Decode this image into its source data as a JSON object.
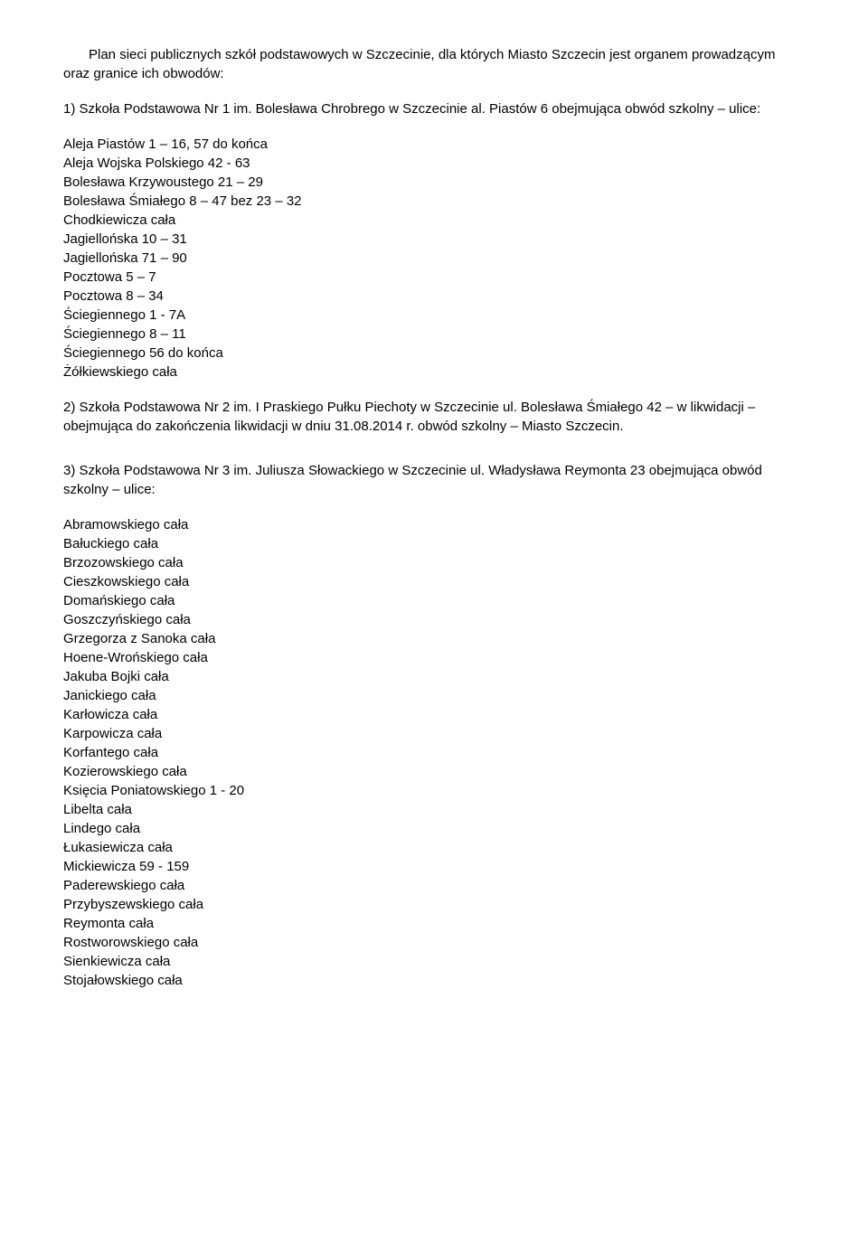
{
  "intro": "Plan sieci publicznych szkół podstawowych w Szczecinie, dla których Miasto Szczecin jest organem prowadzącym oraz granice ich obwodów:",
  "section1": {
    "heading": "1) Szkoła Podstawowa Nr 1 im. Bolesława Chrobrego w Szczecinie al. Piastów 6 obejmująca obwód szkolny – ulice:",
    "streets": [
      "Aleja Piastów 1 – 16, 57 do końca",
      "Aleja Wojska Polskiego  42 - 63",
      "Bolesława Krzywoustego 21 – 29",
      "Bolesława Śmiałego 8 – 47 bez 23 – 32",
      "Chodkiewicza cała",
      "Jagiellońska  10 – 31",
      "Jagiellońska  71 – 90",
      "Pocztowa  5 – 7",
      "Pocztowa  8 – 34",
      "Ściegiennego  1 - 7A",
      "Ściegiennego  8 – 11",
      "Ściegiennego  56 do końca",
      "Żółkiewskiego cała"
    ]
  },
  "section2": {
    "text": "2) Szkoła Podstawowa Nr 2 im. I Praskiego Pułku Piechoty w Szczecinie ul. Bolesława Śmiałego 42 – w likwidacji – obejmująca do zakończenia likwidacji w dniu 31.08.2014 r. obwód szkolny – Miasto Szczecin."
  },
  "section3": {
    "heading": "3) Szkoła Podstawowa Nr 3 im. Juliusza Słowackiego w Szczecinie  ul. Władysława Reymonta 23 obejmująca obwód szkolny – ulice:",
    "streets": [
      "Abramowskiego cała",
      "Bałuckiego  cała",
      "Brzozowskiego  cała",
      "Cieszkowskiego  cała",
      "Domańskiego  cała",
      "Goszczyńskiego  cała",
      "Grzegorza z Sanoka  cała",
      "Hoene-Wrońskiego  cała",
      "Jakuba Bojki  cała",
      "Janickiego  cała",
      "Karłowicza  cała",
      "Karpowicza  cała",
      "Korfantego  cała",
      "Kozierowskiego  cała",
      "Księcia Poniatowskiego  1 - 20",
      "Libelta  cała",
      "Lindego  cała",
      "Łukasiewicza  cała",
      "Mickiewicza  59 - 159",
      "Paderewskiego  cała",
      "Przybyszewskiego  cała",
      "Reymonta  cała",
      "Rostworowskiego  cała",
      "Sienkiewicza  cała",
      "Stojałowskiego  cała"
    ]
  }
}
